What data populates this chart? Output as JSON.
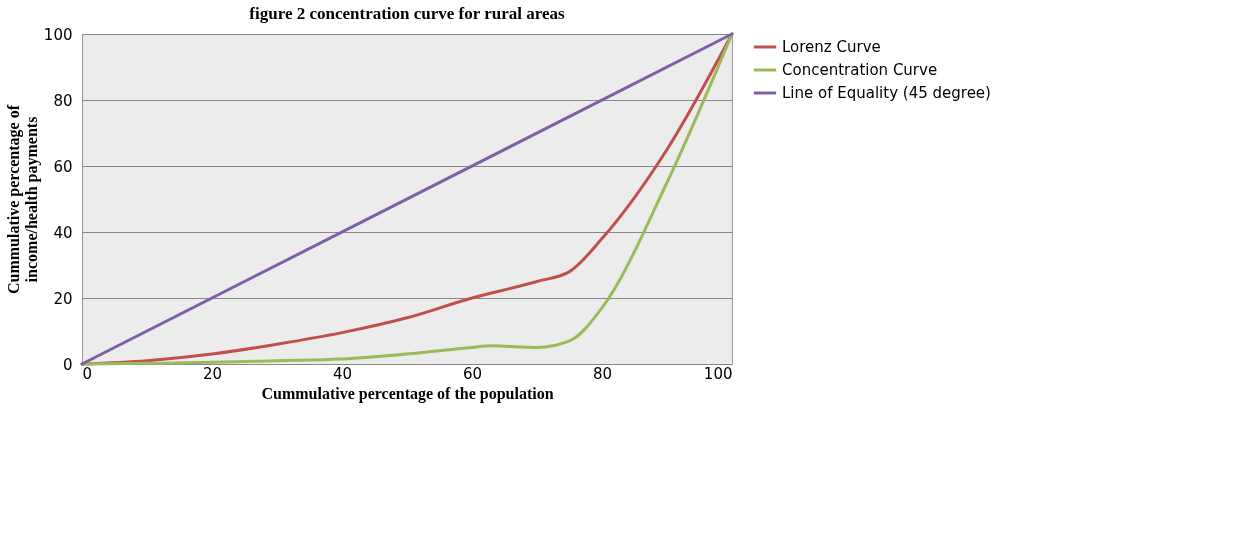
{
  "chart_data": {
    "type": "line",
    "title": "figure 2 concentration curve for rural areas",
    "xlabel": "Cummulative percentage of the population",
    "ylabel": "Cummulative percentage of income/health payments",
    "xlim": [
      0,
      100
    ],
    "xticks": [
      0,
      20,
      40,
      60,
      80,
      100
    ],
    "ylim": [
      0,
      100
    ],
    "yticks": [
      0,
      20,
      40,
      60,
      80,
      100
    ],
    "grid": "y",
    "legend": "right",
    "marker": "none",
    "line_style": "solid",
    "series": [
      {
        "name": "Lorenz Curve",
        "color": "#c0504d",
        "x": [
          0,
          10,
          20,
          30,
          40,
          50,
          60,
          70,
          75,
          80,
          90,
          100
        ],
        "values": [
          0,
          1,
          3,
          6,
          9.5,
          14,
          20,
          25,
          28,
          38,
          65,
          100
        ]
      },
      {
        "name": "Concentration Curve",
        "color": "#9bbb59",
        "x": [
          0,
          10,
          20,
          30,
          40,
          50,
          60,
          63,
          70,
          75,
          80,
          90,
          100
        ],
        "values": [
          0,
          0.2,
          0.5,
          1,
          1.5,
          3,
          5,
          5.5,
          5,
          7,
          17,
          55,
          100
        ]
      },
      {
        "name": "Line of Equality (45 degree)",
        "color": "#7f5fa8",
        "x": [
          0,
          100
        ],
        "values": [
          0,
          100
        ]
      }
    ]
  }
}
